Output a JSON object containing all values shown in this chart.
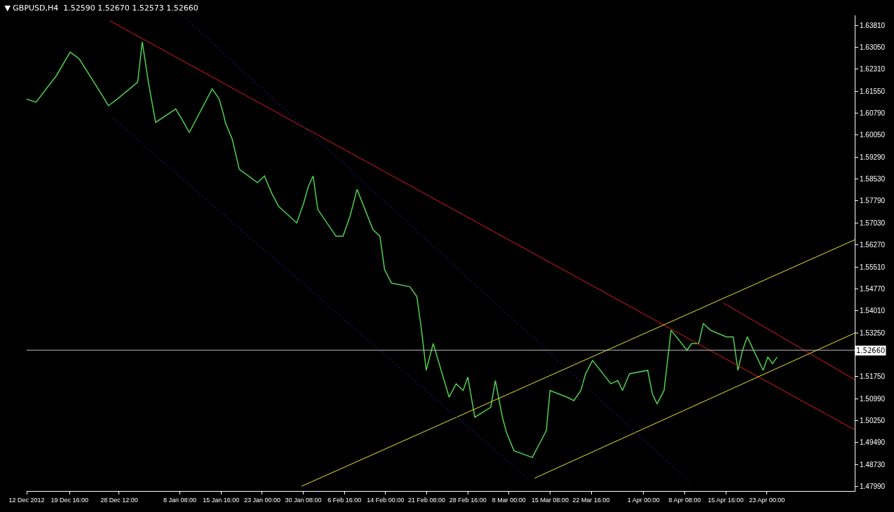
{
  "chart_data": {
    "type": "line",
    "title": "▼ GBPUSD,H4  1.52590 1.52670 1.52573 1.52660",
    "x": [
      "2012-12-12T00:00",
      "2012-12-13T16:00",
      "2012-12-17T08:00",
      "2012-12-19T18:00",
      "2012-12-21T09:00",
      "2012-12-25T12:00",
      "2012-12-26T14:00",
      "2012-12-28T04:00",
      "2012-12-31T19:00",
      "2013-01-01T15:00",
      "2013-01-02T17:00",
      "2013-01-04T00:00",
      "2013-01-07T14:00",
      "2013-01-09T00:00",
      "2013-01-10T00:00",
      "2013-01-14T02:00",
      "2013-01-15T08:00",
      "2013-01-16T04:00",
      "2013-01-16T10:00",
      "2013-01-17T16:00",
      "2013-01-18T22:00",
      "2013-01-22T04:00",
      "2013-01-23T10:00",
      "2013-01-24T16:00",
      "2013-01-25T22:00",
      "2013-01-29T04:00",
      "2013-01-30T10:00",
      "2013-01-31T06:00",
      "2013-02-01T02:00",
      "2013-02-01T22:00",
      "2013-02-05T04:00",
      "2013-02-06T10:00",
      "2013-02-07T16:00",
      "2013-02-08T22:00",
      "2013-02-11T18:00",
      "2013-02-13T00:00",
      "2013-02-13T20:00",
      "2013-02-15T02:00",
      "2013-02-18T08:00",
      "2013-02-19T14:00",
      "2013-02-20T10:00",
      "2013-02-21T06:00",
      "2013-02-22T12:00",
      "2013-02-25T08:00",
      "2013-02-26T14:00",
      "2013-02-27T20:00",
      "2013-02-28T16:00",
      "2013-03-01T22:00",
      "2013-03-04T18:00",
      "2013-03-05T14:00",
      "2013-03-06T20:00",
      "2013-03-07T16:00",
      "2013-03-08T22:00",
      "2013-03-12T04:00",
      "2013-03-13T10:00",
      "2013-03-14T16:00",
      "2013-03-15T08:00",
      "2013-03-18T08:00",
      "2013-03-19T14:00",
      "2013-03-20T20:00",
      "2013-03-21T16:00",
      "2013-03-22T22:00",
      "2013-03-26T04:00",
      "2013-03-27T10:00",
      "2013-03-28T06:00",
      "2013-03-29T12:00",
      "2013-04-01T18:00",
      "2013-04-02T14:00",
      "2013-04-03T10:00",
      "2013-04-04T16:00",
      "2013-04-05T22:00",
      "2013-04-08T18:00",
      "2013-04-09T14:00",
      "2013-04-10T20:00",
      "2013-04-11T16:00",
      "2013-04-12T22:00",
      "2013-04-15T18:00",
      "2013-04-17T00:00",
      "2013-04-17T20:00",
      "2013-04-18T16:00",
      "2013-04-19T12:00",
      "2013-04-22T08:00",
      "2013-04-23T04:00",
      "2013-04-24T00:00",
      "2013-04-24T20:00"
    ],
    "values": [
      1.6128,
      1.6117,
      1.6209,
      1.6289,
      1.6266,
      1.614,
      1.6105,
      1.6128,
      1.6186,
      1.6324,
      1.6186,
      1.6048,
      1.6094,
      1.6048,
      1.6013,
      1.6163,
      1.6128,
      1.6071,
      1.6048,
      1.599,
      1.5887,
      1.5841,
      1.5864,
      1.5806,
      1.576,
      1.5703,
      1.5772,
      1.5829,
      1.5864,
      1.5749,
      1.5657,
      1.5657,
      1.5726,
      1.5818,
      1.568,
      1.5657,
      1.5542,
      1.5496,
      1.5484,
      1.545,
      1.5335,
      1.5197,
      1.5289,
      1.5105,
      1.5151,
      1.5128,
      1.5174,
      1.5036,
      1.507,
      1.5162,
      1.5036,
      1.4978,
      1.4921,
      1.4898,
      1.4944,
      1.499,
      1.5128,
      1.5105,
      1.5093,
      1.5128,
      1.5185,
      1.5231,
      1.5151,
      1.5162,
      1.5128,
      1.5185,
      1.5197,
      1.5116,
      1.5082,
      1.5128,
      1.5335,
      1.5266,
      1.5289,
      1.5289,
      1.5358,
      1.5335,
      1.5312,
      1.5312,
      1.5197,
      1.5266,
      1.5312,
      1.5197,
      1.5243,
      1.522,
      1.5243
    ],
    "color": "#4fd04f",
    "series": [
      {
        "type": "line",
        "x": [
          "2012-12-26T19:00",
          "2013-05-08T16:00"
        ],
        "values": [
          1.6397,
          1.4993
        ],
        "color": "#e0191e",
        "line_style": "solid"
      },
      {
        "type": "line",
        "x": [
          "2013-04-15T06:00",
          "2013-05-08T16:00"
        ],
        "values": [
          1.5428,
          1.5165
        ],
        "color": "#e0191e",
        "line_style": "solid"
      },
      {
        "type": "line",
        "x": [
          "2013-01-30T00:00",
          "2013-05-08T16:00"
        ],
        "values": [
          1.4799,
          1.5645
        ],
        "color": "#e6e632",
        "line_style": "solid"
      },
      {
        "type": "line",
        "x": [
          "2013-03-12T14:00",
          "2013-05-08T16:00"
        ],
        "values": [
          1.4827,
          1.5325
        ],
        "color": "#e6e632",
        "line_style": "solid"
      },
      {
        "type": "line",
        "x": [
          "2013-01-09T10:00",
          "2013-04-09T04:00"
        ],
        "values": [
          1.6404,
          1.4815
        ],
        "color": "#1c1c90",
        "line_style": "dotted"
      },
      {
        "type": "line",
        "x": [
          "2012-12-27T10:00",
          "2013-03-11T12:00"
        ],
        "values": [
          1.6061,
          1.4822
        ],
        "color": "#1c1c90",
        "line_style": "dotted"
      }
    ],
    "ref_lines": [
      {
        "axis": "y",
        "value": 1.5266,
        "label": "1.52660",
        "color": "#c0c0c0"
      }
    ],
    "xlim": [
      "2012-12-12T00:00",
      "2013-05-08T16:00"
    ],
    "xticks": [
      {
        "value": "2012-12-12T00:00",
        "label": "12 Dec 2012"
      },
      {
        "value": "2012-12-19T16:00",
        "label": "19 Dec 16:00"
      },
      {
        "value": "2012-12-28T12:00",
        "label": "28 Dec 12:00"
      },
      {
        "value": "2013-01-08T08:00",
        "label": "8 Jan 08:00"
      },
      {
        "value": "2013-01-15T16:00",
        "label": "15 Jan 16:00"
      },
      {
        "value": "2013-01-23T00:00",
        "label": "23 Jan 00:00"
      },
      {
        "value": "2013-01-30T08:00",
        "label": "30 Jan 08:00"
      },
      {
        "value": "2013-02-06T16:00",
        "label": "6 Feb 16:00"
      },
      {
        "value": "2013-02-14T00:00",
        "label": "14 Feb 00:00"
      },
      {
        "value": "2013-02-21T08:00",
        "label": "21 Feb 08:00"
      },
      {
        "value": "2013-02-28T16:00",
        "label": "28 Feb 16:00"
      },
      {
        "value": "2013-03-08T00:00",
        "label": "8 Mar 00:00"
      },
      {
        "value": "2013-03-15T08:00",
        "label": "15 Mar 08:00"
      },
      {
        "value": "2013-03-22T16:00",
        "label": "22 Mar 16:00"
      },
      {
        "value": "2013-04-01T00:00",
        "label": "1 Apr 00:00"
      },
      {
        "value": "2013-04-08T08:00",
        "label": "8 Apr 08:00"
      },
      {
        "value": "2013-04-15T16:00",
        "label": "15 Apr 16:00"
      },
      {
        "value": "2013-04-23T00:00",
        "label": "23 Apr 00:00"
      }
    ],
    "ylim": [
      1.4783,
      1.6415
    ],
    "yticks": [
      {
        "value": 1.6381,
        "label": "1.63810"
      },
      {
        "value": 1.6305,
        "label": "1.63050"
      },
      {
        "value": 1.6231,
        "label": "1.62310"
      },
      {
        "value": 1.6155,
        "label": "1.61550"
      },
      {
        "value": 1.6079,
        "label": "1.60790"
      },
      {
        "value": 1.6005,
        "label": "1.60050"
      },
      {
        "value": 1.5929,
        "label": "1.59290"
      },
      {
        "value": 1.5853,
        "label": "1.58530"
      },
      {
        "value": 1.5779,
        "label": "1.57790"
      },
      {
        "value": 1.5703,
        "label": "1.57030"
      },
      {
        "value": 1.5627,
        "label": "1.56270"
      },
      {
        "value": 1.5551,
        "label": "1.55510"
      },
      {
        "value": 1.5477,
        "label": "1.54770"
      },
      {
        "value": 1.5401,
        "label": "1.54010"
      },
      {
        "value": 1.5325,
        "label": "1.53250"
      },
      {
        "value": 1.5251,
        "label": null
      },
      {
        "value": 1.5175,
        "label": "1.51750"
      },
      {
        "value": 1.5099,
        "label": "1.50990"
      },
      {
        "value": 1.5025,
        "label": "1.50250"
      },
      {
        "value": 1.4949,
        "label": "1.49490"
      },
      {
        "value": 1.4873,
        "label": "1.48730"
      },
      {
        "value": 1.4799,
        "label": "1.47990"
      }
    ],
    "grid": false
  }
}
